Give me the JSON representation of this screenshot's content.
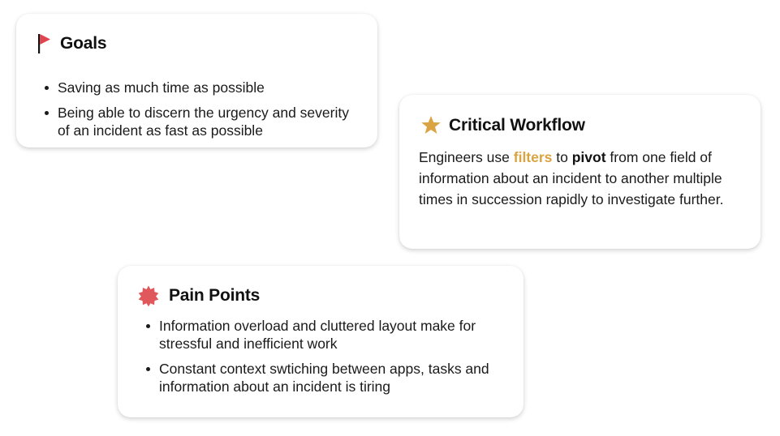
{
  "goals": {
    "icon": "flag-icon",
    "title": "Goals",
    "items": [
      "Saving as much time as possible",
      "Being able to discern the urgency and severity of an incident as fast as possible"
    ]
  },
  "workflow": {
    "icon": "star-icon",
    "title": "Critical Workflow",
    "text_before": "Engineers use ",
    "highlight_1": "filters",
    "text_middle": " to ",
    "highlight_2": "pivot",
    "text_after": " from one field of information about an incident to another multiple times in succession rapidly to investigate further."
  },
  "pain": {
    "icon": "burst-icon",
    "title": "Pain Points",
    "items": [
      "Information overload and cluttered layout make for stressful and inefficient work",
      "Constant context swtiching between apps, tasks and information about an incident is tiring"
    ]
  },
  "colors": {
    "flag": "#e0454f",
    "star": "#d9a441",
    "burst": "#e0575c",
    "highlight": "#d9a441"
  }
}
